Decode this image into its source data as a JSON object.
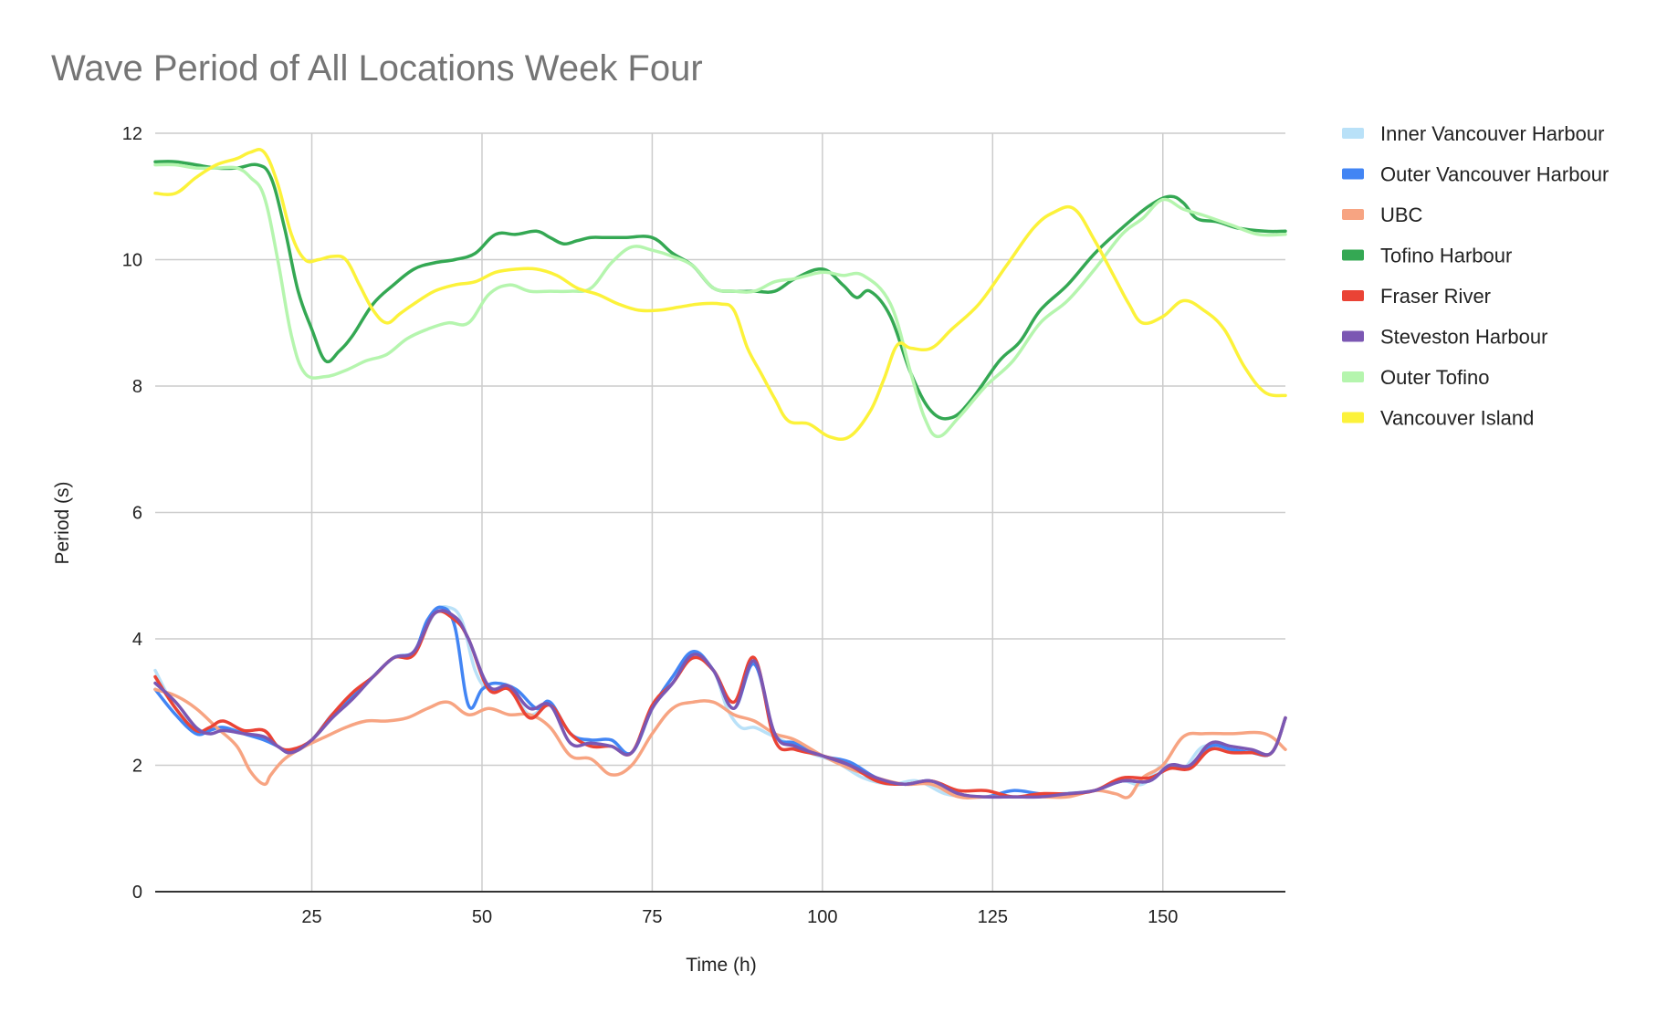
{
  "chart_data": {
    "type": "line",
    "title": "Wave Period of All Locations Week Four",
    "xlabel": "Time (h)",
    "ylabel": "Period (s)",
    "xlim": [
      2,
      168
    ],
    "ylim": [
      0,
      12
    ],
    "x_ticks": [
      25,
      50,
      75,
      100,
      125,
      150
    ],
    "y_ticks": [
      0,
      2,
      4,
      6,
      8,
      10,
      12
    ],
    "grid": true,
    "legend_position": "right",
    "series": [
      {
        "name": "Inner Vancouver Harbour",
        "color": "#b9e1f8",
        "x": [
          2,
          5,
          8,
          10,
          12,
          15,
          18,
          20,
          22,
          25,
          28,
          31,
          34,
          37,
          40,
          43,
          45,
          47,
          49,
          51,
          54,
          57,
          60,
          63,
          66,
          69,
          72,
          75,
          78,
          81,
          84,
          86,
          88,
          90,
          92,
          95,
          98,
          102,
          106,
          110,
          114,
          118,
          122,
          126,
          130,
          135,
          140,
          144,
          147,
          150,
          153,
          156,
          160,
          163,
          166,
          168
        ],
        "y": [
          3.5,
          2.9,
          2.6,
          2.5,
          2.55,
          2.5,
          2.45,
          2.3,
          2.2,
          2.4,
          2.8,
          3.1,
          3.4,
          3.7,
          3.8,
          4.4,
          4.5,
          4.3,
          3.5,
          3.2,
          3.2,
          2.8,
          2.95,
          2.5,
          2.35,
          2.3,
          2.2,
          2.9,
          3.3,
          3.7,
          3.5,
          2.9,
          2.6,
          2.6,
          2.5,
          2.35,
          2.2,
          2.05,
          1.8,
          1.7,
          1.75,
          1.55,
          1.5,
          1.5,
          1.5,
          1.55,
          1.6,
          1.75,
          1.7,
          2.0,
          1.95,
          2.3,
          2.25,
          2.2,
          2.2,
          2.75
        ]
      },
      {
        "name": "Outer Vancouver Harbour",
        "color": "#4285f4",
        "x": [
          2,
          5,
          8,
          10,
          12,
          15,
          18,
          20,
          22,
          25,
          28,
          31,
          34,
          37,
          40,
          42,
          44,
          46,
          48,
          50,
          52,
          55,
          58,
          60,
          63,
          66,
          69,
          72,
          75,
          78,
          81,
          84,
          87,
          90,
          93,
          96,
          100,
          104,
          108,
          112,
          116,
          120,
          124,
          128,
          132,
          136,
          140,
          144,
          148,
          151,
          154,
          157,
          160,
          163,
          166,
          168
        ],
        "y": [
          3.2,
          2.8,
          2.5,
          2.55,
          2.6,
          2.5,
          2.4,
          2.3,
          2.2,
          2.4,
          2.8,
          3.1,
          3.4,
          3.7,
          3.8,
          4.3,
          4.5,
          4.2,
          2.95,
          3.2,
          3.3,
          3.2,
          2.9,
          3.0,
          2.5,
          2.4,
          2.4,
          2.2,
          2.9,
          3.4,
          3.8,
          3.5,
          2.9,
          3.6,
          2.5,
          2.35,
          2.15,
          2.05,
          1.8,
          1.7,
          1.75,
          1.55,
          1.5,
          1.6,
          1.55,
          1.55,
          1.6,
          1.75,
          1.75,
          2.0,
          1.95,
          2.3,
          2.25,
          2.2,
          2.2,
          2.75
        ]
      },
      {
        "name": "UBC",
        "color": "#f7a482",
        "x": [
          2,
          5,
          8,
          11,
          14,
          16,
          18,
          19,
          21,
          24,
          27,
          30,
          33,
          36,
          39,
          42,
          45,
          48,
          51,
          54,
          57,
          60,
          63,
          66,
          69,
          72,
          75,
          78,
          81,
          84,
          87,
          90,
          93,
          96,
          100,
          104,
          108,
          112,
          116,
          120,
          124,
          128,
          132,
          136,
          140,
          143,
          145,
          147,
          150,
          153,
          156,
          160,
          165,
          168
        ],
        "y": [
          3.2,
          3.1,
          2.9,
          2.6,
          2.3,
          1.9,
          1.7,
          1.85,
          2.1,
          2.3,
          2.45,
          2.6,
          2.7,
          2.7,
          2.75,
          2.9,
          3.0,
          2.8,
          2.9,
          2.8,
          2.8,
          2.6,
          2.15,
          2.1,
          1.85,
          2.0,
          2.5,
          2.9,
          3.0,
          3.0,
          2.8,
          2.7,
          2.5,
          2.4,
          2.15,
          1.95,
          1.8,
          1.7,
          1.7,
          1.5,
          1.5,
          1.5,
          1.5,
          1.5,
          1.6,
          1.55,
          1.5,
          1.8,
          2.0,
          2.45,
          2.5,
          2.5,
          2.5,
          2.25
        ]
      },
      {
        "name": "Tofino Harbour",
        "color": "#34a853",
        "x": [
          2,
          5,
          8,
          11,
          14,
          17,
          19,
          21,
          23,
          25,
          27,
          29,
          31,
          34,
          37,
          40,
          43,
          46,
          49,
          52,
          55,
          58,
          60,
          62,
          64,
          66,
          68,
          71,
          75,
          78,
          81,
          84,
          87,
          90,
          93,
          96,
          100,
          103,
          105,
          107,
          110,
          113,
          116,
          119,
          122,
          126,
          129,
          132,
          136,
          140,
          144,
          148,
          151,
          153,
          155,
          158,
          161,
          165,
          168
        ],
        "y": [
          11.55,
          11.55,
          11.5,
          11.45,
          11.45,
          11.5,
          11.3,
          10.5,
          9.5,
          8.9,
          8.4,
          8.55,
          8.8,
          9.3,
          9.6,
          9.85,
          9.95,
          10.0,
          10.1,
          10.4,
          10.4,
          10.45,
          10.35,
          10.25,
          10.3,
          10.35,
          10.35,
          10.35,
          10.35,
          10.1,
          9.9,
          9.55,
          9.5,
          9.5,
          9.5,
          9.7,
          9.85,
          9.6,
          9.4,
          9.5,
          9.1,
          8.2,
          7.6,
          7.5,
          7.8,
          8.4,
          8.7,
          9.2,
          9.6,
          10.1,
          10.5,
          10.85,
          11.0,
          10.9,
          10.65,
          10.6,
          10.5,
          10.45,
          10.45
        ]
      },
      {
        "name": "Fraser River",
        "color": "#ea4335",
        "x": [
          2,
          5,
          8,
          10,
          12,
          15,
          18,
          20,
          22,
          25,
          28,
          31,
          34,
          37,
          40,
          43,
          46,
          48,
          51,
          54,
          57,
          60,
          63,
          66,
          69,
          72,
          75,
          78,
          81,
          84,
          87,
          90,
          93,
          96,
          100,
          104,
          108,
          112,
          116,
          120,
          124,
          128,
          132,
          136,
          140,
          144,
          148,
          151,
          154,
          157,
          160,
          163,
          166,
          168
        ],
        "y": [
          3.4,
          2.9,
          2.55,
          2.6,
          2.7,
          2.55,
          2.55,
          2.3,
          2.25,
          2.4,
          2.8,
          3.15,
          3.4,
          3.7,
          3.75,
          4.4,
          4.3,
          4.0,
          3.2,
          3.2,
          2.75,
          2.95,
          2.5,
          2.3,
          2.3,
          2.2,
          2.95,
          3.3,
          3.7,
          3.5,
          3.0,
          3.7,
          2.4,
          2.25,
          2.15,
          2.0,
          1.75,
          1.7,
          1.75,
          1.6,
          1.6,
          1.5,
          1.55,
          1.55,
          1.6,
          1.8,
          1.8,
          1.95,
          1.95,
          2.25,
          2.2,
          2.2,
          2.2,
          2.75
        ]
      },
      {
        "name": "Steveston Harbour",
        "color": "#7b57b3",
        "x": [
          2,
          5,
          8,
          10,
          12,
          15,
          18,
          20,
          22,
          25,
          28,
          31,
          34,
          37,
          40,
          43,
          46,
          48,
          51,
          54,
          57,
          60,
          63,
          66,
          69,
          72,
          75,
          78,
          81,
          84,
          87,
          90,
          93,
          96,
          100,
          104,
          108,
          112,
          116,
          120,
          124,
          128,
          132,
          136,
          140,
          144,
          148,
          151,
          154,
          157,
          160,
          163,
          166,
          168
        ],
        "y": [
          3.3,
          3.0,
          2.6,
          2.5,
          2.55,
          2.5,
          2.45,
          2.3,
          2.2,
          2.4,
          2.75,
          3.05,
          3.4,
          3.7,
          3.8,
          4.4,
          4.35,
          4.0,
          3.25,
          3.25,
          2.9,
          2.95,
          2.35,
          2.35,
          2.3,
          2.2,
          2.9,
          3.3,
          3.75,
          3.5,
          2.9,
          3.65,
          2.5,
          2.3,
          2.15,
          2.0,
          1.8,
          1.7,
          1.75,
          1.55,
          1.5,
          1.5,
          1.5,
          1.55,
          1.6,
          1.75,
          1.75,
          2.0,
          2.0,
          2.35,
          2.3,
          2.25,
          2.2,
          2.75
        ]
      },
      {
        "name": "Outer Tofino",
        "color": "#b5f5ae",
        "x": [
          2,
          5,
          8,
          11,
          14,
          16,
          18,
          20,
          22,
          24,
          27,
          30,
          33,
          36,
          39,
          42,
          45,
          48,
          51,
          54,
          57,
          60,
          63,
          66,
          69,
          72,
          75,
          78,
          81,
          84,
          87,
          90,
          93,
          96,
          100,
          103,
          106,
          110,
          113,
          115,
          117,
          120,
          124,
          128,
          132,
          136,
          140,
          144,
          147,
          150,
          153,
          156,
          160,
          164,
          168
        ],
        "y": [
          11.5,
          11.5,
          11.45,
          11.45,
          11.45,
          11.3,
          11.0,
          10.0,
          8.8,
          8.2,
          8.15,
          8.25,
          8.4,
          8.5,
          8.75,
          8.9,
          9.0,
          9.0,
          9.45,
          9.6,
          9.5,
          9.5,
          9.5,
          9.55,
          9.95,
          10.2,
          10.15,
          10.05,
          9.9,
          9.55,
          9.5,
          9.5,
          9.65,
          9.7,
          9.8,
          9.75,
          9.75,
          9.3,
          8.2,
          7.5,
          7.2,
          7.5,
          8.0,
          8.4,
          9.0,
          9.35,
          9.85,
          10.4,
          10.65,
          10.95,
          10.8,
          10.7,
          10.55,
          10.4,
          10.4
        ]
      },
      {
        "name": "Vancouver Island",
        "color": "#fcf23a",
        "x": [
          2,
          5,
          8,
          11,
          14,
          16,
          18,
          20,
          22,
          24,
          26,
          28,
          30,
          32,
          34,
          36,
          38,
          40,
          43,
          46,
          49,
          52,
          55,
          58,
          61,
          64,
          67,
          70,
          73,
          76,
          79,
          82,
          85,
          87,
          89,
          91,
          93,
          95,
          98,
          101,
          104,
          107,
          109,
          111,
          113,
          116,
          119,
          123,
          127,
          131,
          134,
          137,
          140,
          143,
          145,
          147,
          150,
          153,
          156,
          159,
          162,
          165,
          168
        ],
        "y": [
          11.05,
          11.05,
          11.3,
          11.5,
          11.6,
          11.7,
          11.7,
          11.2,
          10.4,
          10.0,
          10.0,
          10.05,
          10.0,
          9.6,
          9.2,
          9.0,
          9.15,
          9.3,
          9.5,
          9.6,
          9.65,
          9.8,
          9.85,
          9.85,
          9.75,
          9.55,
          9.45,
          9.3,
          9.2,
          9.2,
          9.25,
          9.3,
          9.3,
          9.2,
          8.6,
          8.2,
          7.8,
          7.45,
          7.4,
          7.2,
          7.2,
          7.6,
          8.1,
          8.65,
          8.6,
          8.6,
          8.9,
          9.3,
          9.9,
          10.5,
          10.75,
          10.8,
          10.3,
          9.7,
          9.3,
          9.0,
          9.1,
          9.35,
          9.2,
          8.9,
          8.3,
          7.9,
          7.85
        ]
      }
    ]
  }
}
